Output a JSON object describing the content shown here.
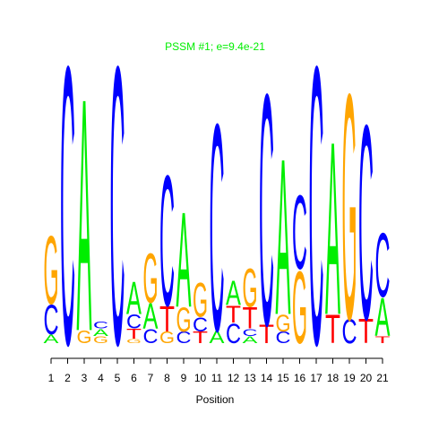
{
  "chart_data": {
    "type": "logo",
    "title": "PSSM #1; e=9.4e-21",
    "x_label": "Position",
    "ylim": [
      0,
      2
    ],
    "xticks": [
      1,
      2,
      3,
      4,
      5,
      6,
      7,
      8,
      9,
      10,
      11,
      12,
      13,
      14,
      15,
      16,
      17,
      18,
      19,
      20,
      21
    ],
    "colors": {
      "A": "#00ee00",
      "C": "#0000ff",
      "G": "#ffa500",
      "T": "#ff0000"
    },
    "title_color": "#00ee00",
    "stacks": [
      {
        "letters": [
          "A",
          "C",
          "G"
        ],
        "values": [
          0.06,
          0.21,
          0.48
        ]
      },
      {
        "letters": [
          "C"
        ],
        "values": [
          1.96
        ]
      },
      {
        "letters": [
          "G",
          "A"
        ],
        "values": [
          0.09,
          1.64
        ]
      },
      {
        "letters": [
          "G",
          "A",
          "C"
        ],
        "values": [
          0.05,
          0.05,
          0.05
        ]
      },
      {
        "letters": [
          "C"
        ],
        "values": [
          1.96
        ]
      },
      {
        "letters": [
          "G",
          "T",
          "C",
          "A"
        ],
        "values": [
          0.03,
          0.07,
          0.1,
          0.23
        ]
      },
      {
        "letters": [
          "C",
          "A",
          "G"
        ],
        "values": [
          0.1,
          0.18,
          0.35
        ]
      },
      {
        "letters": [
          "G",
          "T",
          "C"
        ],
        "values": [
          0.08,
          0.18,
          0.92
        ]
      },
      {
        "letters": [
          "C",
          "G",
          "A"
        ],
        "values": [
          0.08,
          0.17,
          0.67
        ]
      },
      {
        "letters": [
          "T",
          "C",
          "G"
        ],
        "values": [
          0.08,
          0.1,
          0.24
        ]
      },
      {
        "letters": [
          "A",
          "C"
        ],
        "values": [
          0.09,
          1.46
        ]
      },
      {
        "letters": [
          "C",
          "T",
          "A"
        ],
        "values": [
          0.14,
          0.12,
          0.17
        ]
      },
      {
        "letters": [
          "A",
          "C",
          "T",
          "G"
        ],
        "values": [
          0.05,
          0.05,
          0.15,
          0.27
        ]
      },
      {
        "letters": [
          "T",
          "C"
        ],
        "values": [
          0.13,
          1.63
        ]
      },
      {
        "letters": [
          "C",
          "G",
          "A"
        ],
        "values": [
          0.08,
          0.12,
          1.1
        ]
      },
      {
        "letters": [
          "G",
          "C"
        ],
        "values": [
          0.51,
          0.52
        ]
      },
      {
        "letters": [
          "C"
        ],
        "values": [
          1.96
        ]
      },
      {
        "letters": [
          "T",
          "A"
        ],
        "values": [
          0.2,
          1.22
        ]
      },
      {
        "letters": [
          "C",
          "G"
        ],
        "values": [
          0.17,
          1.59
        ]
      },
      {
        "letters": [
          "T",
          "C"
        ],
        "values": [
          0.17,
          1.37
        ]
      },
      {
        "letters": [
          "T",
          "A",
          "C"
        ],
        "values": [
          0.05,
          0.27,
          0.45
        ]
      }
    ]
  }
}
